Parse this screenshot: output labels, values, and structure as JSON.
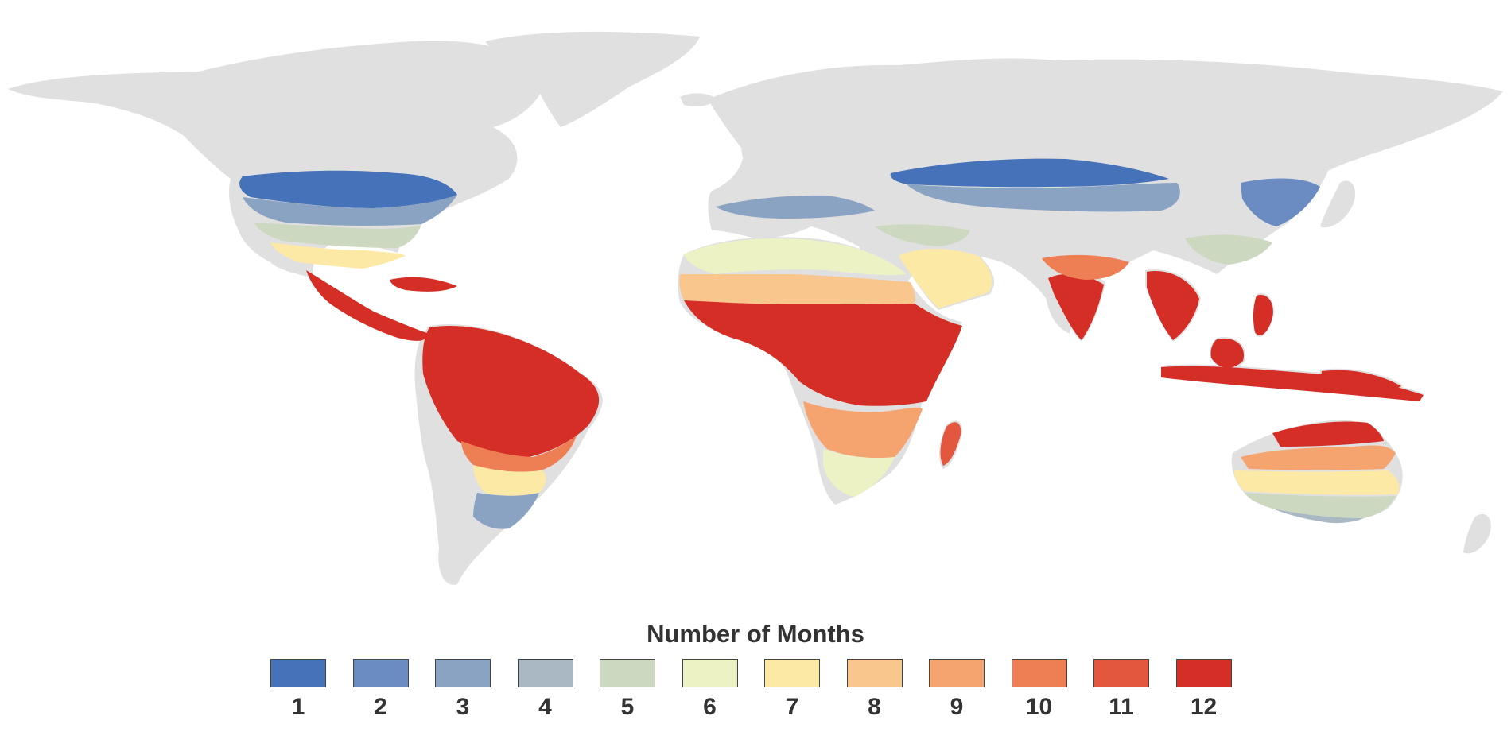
{
  "legend": {
    "title": "Number of Months",
    "classes": [
      {
        "label": "1",
        "color": "#4572b8"
      },
      {
        "label": "2",
        "color": "#6a8cc2"
      },
      {
        "label": "3",
        "color": "#8ba3c2"
      },
      {
        "label": "4",
        "color": "#a9b8c2"
      },
      {
        "label": "5",
        "color": "#cdd8c0"
      },
      {
        "label": "6",
        "color": "#ecf2c4"
      },
      {
        "label": "7",
        "color": "#fde9a6"
      },
      {
        "label": "8",
        "color": "#f9c68e"
      },
      {
        "label": "9",
        "color": "#f5a470"
      },
      {
        "label": "10",
        "color": "#ee7f55"
      },
      {
        "label": "11",
        "color": "#e3573f"
      },
      {
        "label": "12",
        "color": "#d42e26"
      }
    ]
  },
  "map": {
    "land_color": "#e0e0e0",
    "ocean_color": "#ffffff"
  }
}
